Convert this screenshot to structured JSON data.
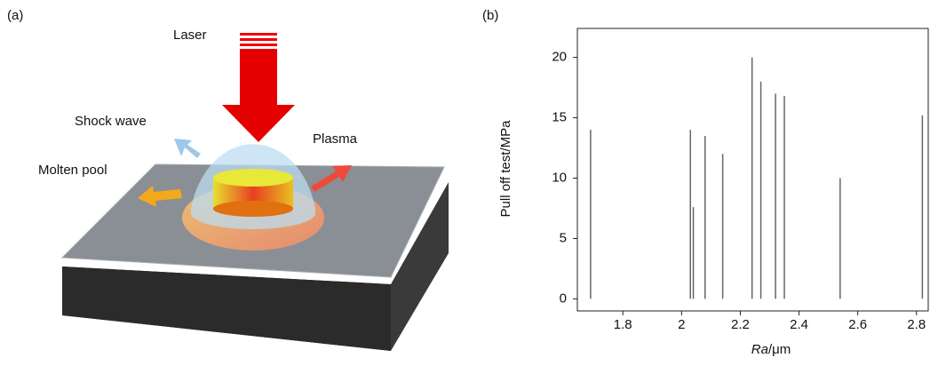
{
  "diagram": {
    "panel_label": "(a)",
    "labels": [
      "Laser",
      "Shock wave",
      "Plasma",
      "Molten pool"
    ]
  },
  "chart_data": {
    "type": "stem",
    "panel_label": "(b)",
    "x_label_italic": "Ra",
    "x_label_rest": "/μm",
    "y_label": "Pull off test/MPa",
    "x": [
      1.69,
      2.03,
      2.04,
      2.08,
      2.14,
      2.24,
      2.27,
      2.32,
      2.35,
      2.54,
      2.82
    ],
    "values": [
      14,
      14,
      7.6,
      13.5,
      12,
      20,
      18,
      17,
      16.8,
      10,
      15.2
    ],
    "color": "#666666",
    "xlim": [
      1.645,
      2.84
    ],
    "ylim": [
      -1,
      22.4
    ],
    "xticks": [
      1.8,
      2.0,
      2.2,
      2.4,
      2.6,
      2.8
    ],
    "yticks": [
      0,
      5,
      10,
      15,
      20
    ]
  }
}
